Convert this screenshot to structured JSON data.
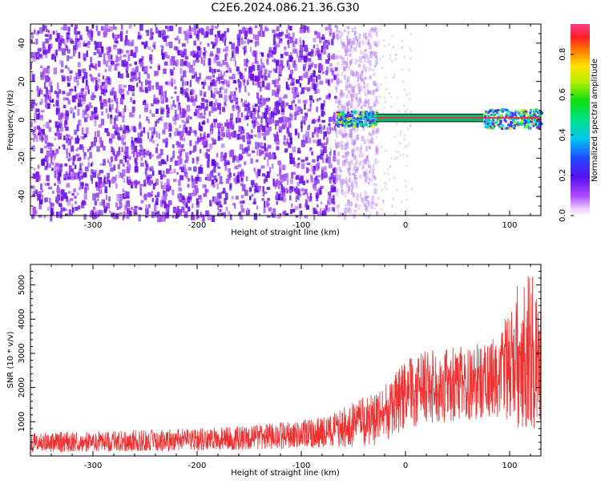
{
  "title": "C2E6.2024.086.21.36.G30",
  "colors": {
    "noise": "#7a1cf0",
    "tone": "#e43434",
    "snr": "#ef3030"
  },
  "chart_data": [
    {
      "type": "heatmap",
      "xlabel": "Height of straight line (km)",
      "ylabel": "Frequency (Hz)",
      "xlim": [
        -360,
        130
      ],
      "ylim": [
        -50,
        50
      ],
      "xticks": [
        -300,
        -200,
        -100,
        0,
        100
      ],
      "yticks": [
        -40,
        -20,
        0,
        20,
        40
      ],
      "colorbar": {
        "label": "Normalized spectral amplitude",
        "range": [
          0.0,
          0.95
        ],
        "ticks": [
          0.0,
          0.2,
          0.4,
          0.6,
          0.8
        ],
        "colormap": "rainbow (magenta-blue-cyan-green-yellow-red-pink)"
      },
      "features": [
        {
          "name": "broadband noise",
          "x_range": [
            -360,
            -68
          ],
          "y_range": [
            -50,
            50
          ],
          "amplitude": 0.05
        },
        {
          "name": "fading noise",
          "x_range": [
            -68,
            -28
          ],
          "y_range": [
            -50,
            50
          ],
          "amplitude": 0.02
        },
        {
          "name": "carrier line",
          "x_range": [
            -68,
            130
          ],
          "y_center": 1,
          "amplitude": 0.85
        }
      ]
    },
    {
      "type": "line",
      "xlabel": "Height of straight line (km)",
      "ylabel": "SNR (10 * v/v)",
      "xlim": [
        -360,
        130
      ],
      "ylim": [
        0,
        5600
      ],
      "xticks": [
        -300,
        -200,
        -100,
        0,
        100
      ],
      "yticks": [
        1000,
        2000,
        3000,
        4000,
        5000
      ],
      "series": [
        {
          "x": [
            -360,
            -300,
            -250,
            -200,
            -150,
            -100,
            -75,
            -50,
            -25,
            -10,
            0,
            20,
            50,
            75,
            90,
            100,
            110,
            120,
            130
          ],
          "y": [
            400,
            420,
            450,
            480,
            530,
            620,
            700,
            900,
            1100,
            1500,
            1800,
            2000,
            2100,
            2200,
            2300,
            2600,
            3000,
            3200,
            2400
          ],
          "spread": [
            300,
            300,
            320,
            330,
            360,
            420,
            500,
            700,
            800,
            900,
            1000,
            1100,
            1100,
            1100,
            1200,
            1800,
            2200,
            2400,
            2000
          ]
        }
      ]
    }
  ]
}
